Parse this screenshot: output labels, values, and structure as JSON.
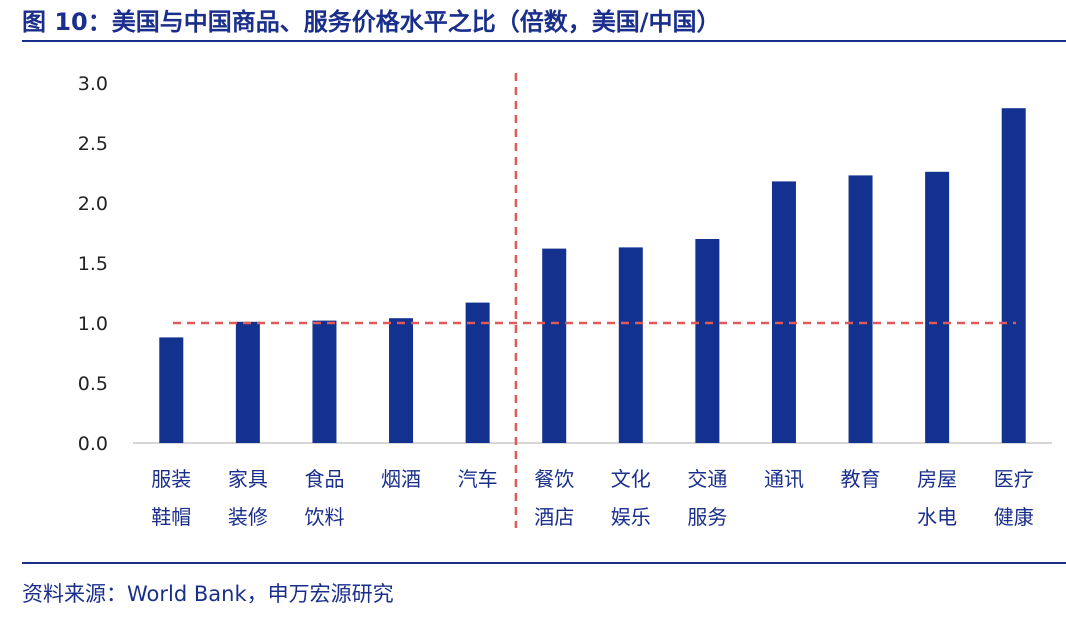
{
  "header": {
    "title": "图 10：美国与中国商品、服务价格水平之比（倍数，美国/中国）"
  },
  "footer": {
    "source": "资料来源：World Bank，申万宏源研究"
  },
  "colors": {
    "bar": "#13318f",
    "accent": "#1a2f8c",
    "reference_line": "#e05a5a"
  },
  "chart_data": {
    "type": "bar",
    "title": "",
    "xlabel": "",
    "ylabel": "",
    "ylim": [
      0,
      3.0
    ],
    "yticks": [
      "0.0",
      "0.5",
      "1.0",
      "1.5",
      "2.0",
      "2.5",
      "3.0"
    ],
    "grid": false,
    "legend": "none",
    "categories": [
      [
        "服装",
        "鞋帽"
      ],
      [
        "家具",
        "装修"
      ],
      [
        "食品",
        "饮料"
      ],
      [
        "烟酒"
      ],
      [
        "汽车"
      ],
      [
        "餐饮",
        "酒店"
      ],
      [
        "文化",
        "娱乐"
      ],
      [
        "交通",
        "服务"
      ],
      [
        "通讯"
      ],
      [
        "教育"
      ],
      [
        "房屋",
        "水电"
      ],
      [
        "医疗",
        "健康"
      ]
    ],
    "values": [
      0.88,
      1.01,
      1.02,
      1.04,
      1.17,
      1.62,
      1.63,
      1.7,
      2.18,
      2.23,
      2.26,
      2.79
    ],
    "reference_line": {
      "y": 1.0,
      "style": "dashed"
    },
    "divider": {
      "between": [
        "汽车",
        "餐饮"
      ],
      "style": "dashed"
    }
  }
}
